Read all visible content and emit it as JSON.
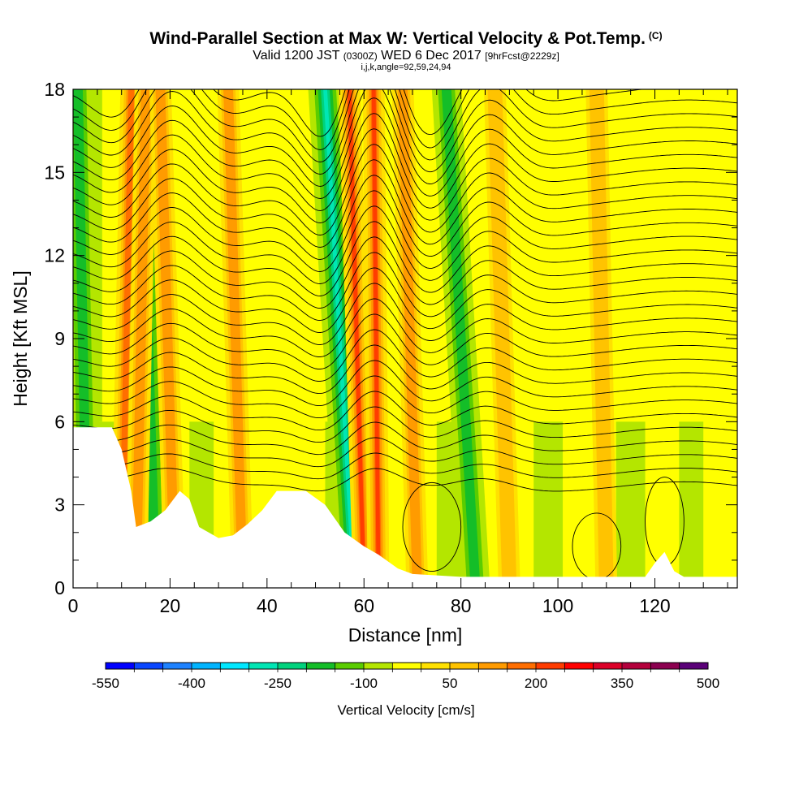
{
  "header": {
    "title": "Wind-Parallel Section at Max W: Vertical Velocity & Pot.Temp.",
    "title_mark": "(C)",
    "valid_prefix": "Valid 1200 JST",
    "valid_utc": "(0300Z)",
    "valid_date": "WED 6 Dec 2017",
    "forecast": "[9hrFcst@2229z]",
    "grid_info": "i,j,k,angle=92,59,24,94"
  },
  "chart_data": {
    "type": "heatmap",
    "xlabel": "Distance [nm]",
    "ylabel": "Height [Kft MSL]",
    "xlim": [
      0,
      137
    ],
    "ylim": [
      0,
      18
    ],
    "x_ticks": [
      0,
      20,
      40,
      60,
      80,
      100,
      120
    ],
    "y_ticks": [
      0,
      3,
      6,
      9,
      12,
      15,
      18
    ],
    "grid": false,
    "colorbar": {
      "label": "Vertical Velocity [cm/s]",
      "tick_labels": [
        "-550",
        "-400",
        "-250",
        "-100",
        "50",
        "200",
        "350",
        "500"
      ],
      "colors": [
        "#0000ff",
        "#0a46ff",
        "#1e82ff",
        "#00b4ff",
        "#00e8ff",
        "#00e6b4",
        "#00d27d",
        "#14be28",
        "#5acd00",
        "#b4e600",
        "#ffff00",
        "#ffe100",
        "#ffc300",
        "#ff9b00",
        "#ff6e00",
        "#ff3c00",
        "#ff0000",
        "#dc0028",
        "#b4003c",
        "#8c0050",
        "#5a0078"
      ]
    },
    "updraft_bands": [
      {
        "x_base": 10,
        "x_top": 12,
        "w_max": 250
      },
      {
        "x_base": 13,
        "x_top": 15,
        "w_max": 200
      },
      {
        "x_base": 21,
        "x_top": 18,
        "w_max": 150
      },
      {
        "x_base": 35,
        "x_top": 32,
        "w_max": 150
      },
      {
        "x_base": 60,
        "x_top": 57,
        "w_max": 450
      },
      {
        "x_base": 63,
        "x_top": 62,
        "w_max": 350
      },
      {
        "x_base": 71,
        "x_top": 68,
        "w_max": 200
      },
      {
        "x_base": 90,
        "x_top": 87,
        "w_max": 120
      },
      {
        "x_base": 110,
        "x_top": 108,
        "w_max": 100
      }
    ],
    "downdraft_bands": [
      {
        "x_base": 58,
        "x_top": 52,
        "w_min": -300
      },
      {
        "x_base": 83,
        "x_top": 77,
        "w_min": -150
      },
      {
        "x_base": 17,
        "x_top": 14,
        "w_min": -150
      },
      {
        "x_base": 3,
        "x_top": 1,
        "w_min": -150
      }
    ],
    "terrain_kft": [
      [
        0,
        5.8
      ],
      [
        8,
        5.8
      ],
      [
        10,
        5.0
      ],
      [
        12,
        3.5
      ],
      [
        13,
        2.2
      ],
      [
        16,
        2.4
      ],
      [
        19,
        2.8
      ],
      [
        22,
        3.5
      ],
      [
        24,
        3.2
      ],
      [
        26,
        2.2
      ],
      [
        30,
        1.8
      ],
      [
        33,
        1.9
      ],
      [
        36,
        2.3
      ],
      [
        39,
        2.8
      ],
      [
        42,
        3.5
      ],
      [
        48,
        3.5
      ],
      [
        52,
        3.0
      ],
      [
        56,
        2.0
      ],
      [
        60,
        1.5
      ],
      [
        63,
        1.2
      ],
      [
        67,
        0.7
      ],
      [
        70,
        0.5
      ],
      [
        80,
        0.4
      ],
      [
        110,
        0.4
      ],
      [
        118,
        0.4
      ],
      [
        120,
        0.9
      ],
      [
        122,
        1.3
      ],
      [
        124,
        0.6
      ],
      [
        126,
        0.4
      ],
      [
        137,
        0.4
      ]
    ],
    "contour_count": 30
  }
}
